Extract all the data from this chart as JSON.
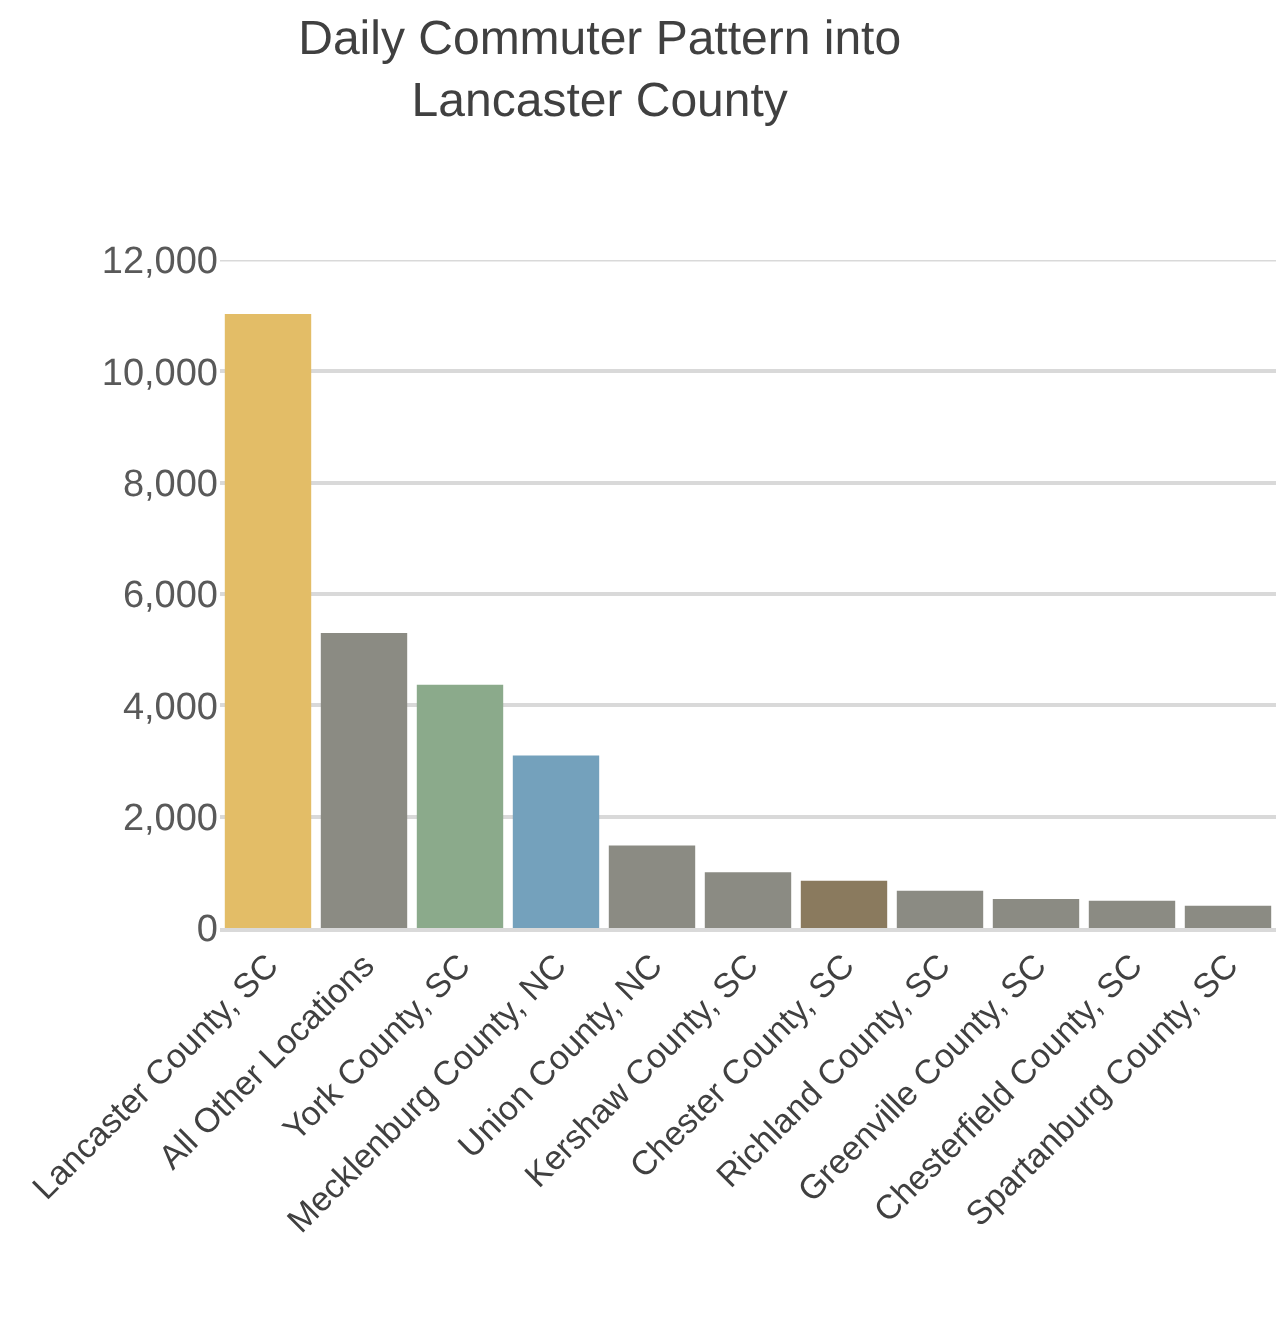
{
  "chart_data": {
    "type": "bar",
    "title": "Daily Commuter Pattern into\nLancaster County",
    "categories": [
      "Lancaster County, SC",
      "All Other Locations",
      "York County, SC",
      "Mecklenburg County, NC",
      "Union County, NC",
      "Kershaw County, SC",
      "Chester County, SC",
      "Richland County, SC",
      "Greenville County, SC",
      "Chesterfield County, SC",
      "Spartanburg County, SC"
    ],
    "values": [
      11030,
      5300,
      4370,
      3100,
      1480,
      1000,
      850,
      670,
      520,
      490,
      400
    ],
    "colors": [
      "#e3bd67",
      "#8b8b83",
      "#8baa8b",
      "#74a1bc",
      "#8b8b83",
      "#8b8b83",
      "#8a7a5e",
      "#8b8b83",
      "#8b8b83",
      "#8b8b83",
      "#8b8b83"
    ],
    "ylim": [
      0,
      12000
    ],
    "yticks": [
      {
        "value": 0,
        "label": "0"
      },
      {
        "value": 2000,
        "label": "2,000"
      },
      {
        "value": 4000,
        "label": "4,000"
      },
      {
        "value": 6000,
        "label": "6,000"
      },
      {
        "value": 8000,
        "label": "8,000"
      },
      {
        "value": 10000,
        "label": "10,000"
      },
      {
        "value": 12000,
        "label": "12,000"
      }
    ],
    "grid": "y"
  }
}
